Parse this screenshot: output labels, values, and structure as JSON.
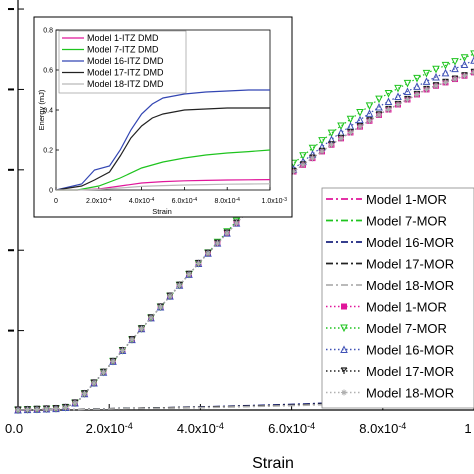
{
  "chart_data": [
    {
      "type": "line",
      "xlabel": "Strain",
      "ylabel": "",
      "xlim": [
        0,
        0.001
      ],
      "ylim": [
        0,
        5.1
      ],
      "x_tick_labels": [
        "0.0",
        "2.0x10",
        "4.0x10",
        "6.0x10",
        "8.0x10",
        "1"
      ],
      "x_tick_exponent": "-4",
      "grid": false,
      "legend_position": "right",
      "series": [
        {
          "name": "Model 1-MOR DMD",
          "legend_label": "Model 1-MOR",
          "color": "#e0169a",
          "style": "dashdot",
          "x": [
            0,
            0.00015,
            0.0003,
            0.00045,
            0.0006,
            0.00075,
            0.0009,
            0.001
          ],
          "y": [
            0,
            0.01,
            0.025,
            0.04,
            0.06,
            0.09,
            0.12,
            0.14
          ]
        },
        {
          "name": "Model 7-MOR DMD",
          "legend_label": "Model 7-MOR",
          "color": "#1ec41e",
          "style": "dashdot",
          "x": [
            0,
            0.00015,
            0.0003,
            0.00045,
            0.0006,
            0.00075,
            0.0009,
            0.001
          ],
          "y": [
            0,
            0.01,
            0.025,
            0.04,
            0.06,
            0.09,
            0.12,
            0.14
          ]
        },
        {
          "name": "Model 16-MOR DMD",
          "legend_label": "Model 16-MOR",
          "color": "#1a237e",
          "style": "dashdot",
          "x": [
            0,
            0.00015,
            0.0003,
            0.00045,
            0.0006,
            0.00075,
            0.0009,
            0.001
          ],
          "y": [
            0,
            0.01,
            0.025,
            0.045,
            0.07,
            0.1,
            0.13,
            0.15
          ]
        },
        {
          "name": "Model 17-MOR DMD",
          "legend_label": "Model 17-MOR",
          "color": "#222222",
          "style": "dashdot",
          "x": [
            0,
            0.00015,
            0.0003,
            0.00045,
            0.0006,
            0.00075,
            0.0009,
            0.001
          ],
          "y": [
            0,
            0.01,
            0.025,
            0.04,
            0.06,
            0.09,
            0.12,
            0.14
          ]
        },
        {
          "name": "Model 18-MOR DMD",
          "legend_label": "Model 18-MOR",
          "color": "#b0b0b0",
          "style": "dashdot",
          "x": [
            0,
            0.00015,
            0.0003,
            0.00045,
            0.0006,
            0.00075,
            0.0009,
            0.001
          ],
          "y": [
            0,
            0.01,
            0.02,
            0.035,
            0.055,
            0.08,
            0.11,
            0.13
          ]
        },
        {
          "name": "Model 1-MOR",
          "legend_label": "Model 1-MOR",
          "color": "#e0169a",
          "style": "dot",
          "marker": "square",
          "x": [
            0,
            0.0001,
            0.00013,
            0.0002,
            0.0003,
            0.0004,
            0.0005,
            0.0006,
            0.0007,
            0.0008,
            0.0009,
            0.001
          ],
          "y": [
            0,
            0.02,
            0.1,
            0.55,
            1.2,
            1.85,
            2.45,
            2.95,
            3.35,
            3.7,
            4.0,
            4.2
          ]
        },
        {
          "name": "Model 7-MOR",
          "legend_label": "Model 7-MOR",
          "color": "#1ec41e",
          "style": "dot",
          "marker": "triangle-down",
          "x": [
            0,
            0.0001,
            0.00013,
            0.0002,
            0.0003,
            0.0004,
            0.0005,
            0.0006,
            0.0007,
            0.0008,
            0.0009,
            0.001
          ],
          "y": [
            0,
            0.02,
            0.1,
            0.55,
            1.2,
            1.85,
            2.48,
            3.05,
            3.5,
            3.9,
            4.2,
            4.43
          ]
        },
        {
          "name": "Model 16-MOR",
          "legend_label": "Model 16-MOR",
          "color": "#3f51b5",
          "style": "dot",
          "marker": "triangle-up",
          "x": [
            0,
            0.0001,
            0.00013,
            0.0002,
            0.0003,
            0.0004,
            0.0005,
            0.0006,
            0.0007,
            0.0008,
            0.0009,
            0.001
          ],
          "y": [
            0,
            0.02,
            0.1,
            0.55,
            1.2,
            1.85,
            2.45,
            2.98,
            3.42,
            3.8,
            4.1,
            4.35
          ]
        },
        {
          "name": "Model 17-MOR",
          "legend_label": "Model 17-MOR",
          "color": "#222222",
          "style": "dot",
          "marker": "tri-down",
          "x": [
            0,
            0.0001,
            0.00013,
            0.0002,
            0.0003,
            0.0004,
            0.0005,
            0.0006,
            0.0007,
            0.0008,
            0.0009,
            0.001
          ],
          "y": [
            0,
            0.02,
            0.1,
            0.55,
            1.2,
            1.85,
            2.45,
            2.95,
            3.35,
            3.7,
            4.0,
            4.2
          ]
        },
        {
          "name": "Model 18-MOR",
          "legend_label": "Model 18-MOR",
          "color": "#b0b0b0",
          "style": "dot",
          "marker": "star",
          "x": [
            0,
            0.0001,
            0.00013,
            0.0002,
            0.0003,
            0.0004,
            0.0005,
            0.0006,
            0.0007,
            0.0008,
            0.0009,
            0.001
          ],
          "y": [
            0,
            0.02,
            0.1,
            0.55,
            1.2,
            1.85,
            2.45,
            2.95,
            3.35,
            3.7,
            4.0,
            4.2
          ]
        }
      ]
    },
    {
      "type": "line",
      "inset": true,
      "xlabel": "Strain",
      "ylabel": "Energy (mJ)",
      "xlim": [
        0,
        0.001
      ],
      "ylim": [
        0,
        0.8
      ],
      "y_ticks": [
        "0",
        "0.2",
        "0.4",
        "0.6",
        "0.8"
      ],
      "x_tick_labels": [
        "0",
        "2.0x10",
        "4.0x10",
        "6.0x10",
        "8.0x10",
        "1.0x10"
      ],
      "x_tick_exponents": [
        "",
        "-4",
        "-4",
        "-4",
        "-4",
        "-3"
      ],
      "legend_position": "top-left",
      "series": [
        {
          "name": "Model 1-ITZ DMD",
          "color": "#e0169a",
          "x": [
            0,
            0.0001,
            0.0002,
            0.0003,
            0.0004,
            0.0005,
            0.0006,
            0.0007,
            0.0008,
            0.0009,
            0.001
          ],
          "y": [
            0,
            0.0,
            0.005,
            0.02,
            0.035,
            0.042,
            0.046,
            0.048,
            0.05,
            0.051,
            0.052
          ]
        },
        {
          "name": "Model 7-ITZ DMD",
          "color": "#1ec41e",
          "x": [
            0,
            0.0001,
            0.0002,
            0.0003,
            0.0004,
            0.0005,
            0.0006,
            0.0007,
            0.0008,
            0.0009,
            0.001
          ],
          "y": [
            0,
            0.0,
            0.02,
            0.06,
            0.11,
            0.14,
            0.16,
            0.175,
            0.185,
            0.192,
            0.2
          ]
        },
        {
          "name": "Model 16-ITZ DMD",
          "color": "#3346b3",
          "x": [
            0,
            0.00012,
            0.00018,
            0.00025,
            0.0003,
            0.00035,
            0.0004,
            0.00045,
            0.0005,
            0.0006,
            0.0007,
            0.0008,
            0.0009,
            0.001
          ],
          "y": [
            0,
            0.03,
            0.1,
            0.12,
            0.2,
            0.3,
            0.38,
            0.43,
            0.46,
            0.48,
            0.49,
            0.495,
            0.5,
            0.5
          ]
        },
        {
          "name": "Model 17-ITZ DMD",
          "color": "#222222",
          "x": [
            0,
            0.00012,
            0.00018,
            0.00025,
            0.0003,
            0.00035,
            0.0004,
            0.00045,
            0.0005,
            0.0006,
            0.0007,
            0.0008,
            0.0009,
            0.001
          ],
          "y": [
            0,
            0.02,
            0.05,
            0.09,
            0.17,
            0.26,
            0.32,
            0.36,
            0.38,
            0.4,
            0.405,
            0.41,
            0.41,
            0.41
          ]
        },
        {
          "name": "Model 18-ITZ DMD",
          "color": "#b9b9b9",
          "x": [
            0,
            0.0001,
            0.0002,
            0.0003,
            0.0004,
            0.0005,
            0.0006,
            0.0007,
            0.0008,
            0.0009,
            0.001
          ],
          "y": [
            0,
            0.0,
            0.003,
            0.01,
            0.018,
            0.022,
            0.025,
            0.027,
            0.029,
            0.03,
            0.031
          ]
        }
      ]
    }
  ]
}
